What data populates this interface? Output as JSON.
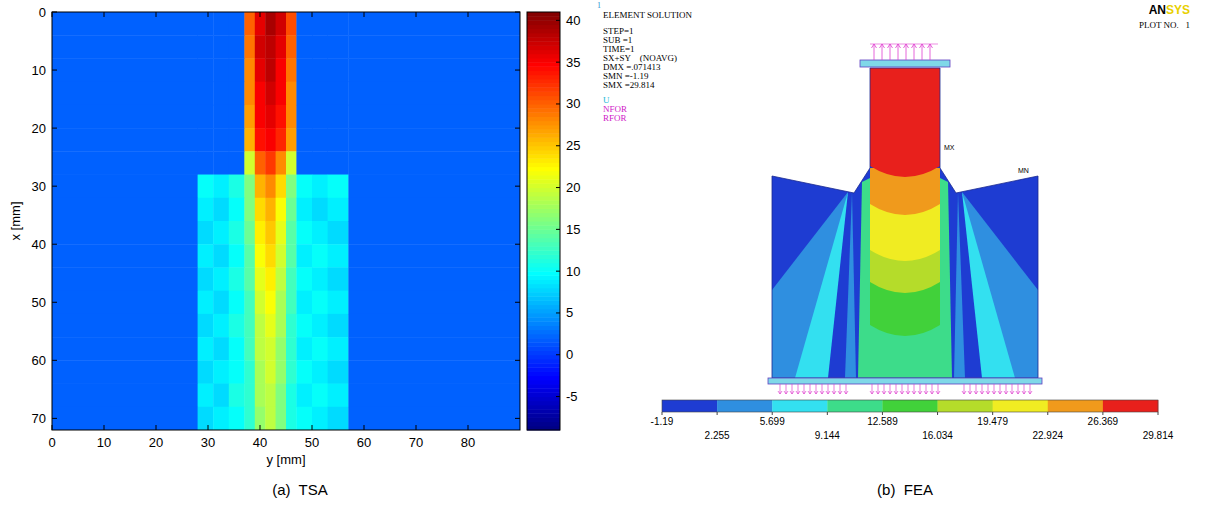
{
  "chart_data": [
    {
      "type": "heatmap",
      "caption": "(a)  TSA",
      "xlabel": "y [mm]",
      "ylabel": "x [mm]",
      "xlim": [
        0,
        90
      ],
      "ylim": [
        72,
        0
      ],
      "xticks": [
        0,
        10,
        20,
        30,
        40,
        50,
        60,
        70,
        80
      ],
      "yticks": [
        0,
        10,
        20,
        30,
        40,
        50,
        60,
        70
      ],
      "x_edges": [
        0,
        28,
        31,
        34,
        37,
        39,
        41,
        43,
        45,
        47,
        50,
        53,
        57,
        90
      ],
      "y_edges": [
        0,
        4,
        8,
        12,
        16,
        20,
        24,
        28,
        32,
        36,
        40,
        44,
        48,
        52,
        56,
        60,
        64,
        68,
        72
      ],
      "cells": [
        [
          2,
          2,
          2,
          2,
          30,
          36,
          39,
          37,
          31,
          2,
          2,
          2,
          2
        ],
        [
          2,
          2,
          2,
          2,
          29,
          37,
          38,
          36,
          30,
          2,
          2,
          2,
          2
        ],
        [
          2,
          2,
          2,
          2,
          28,
          36,
          38,
          35,
          29,
          2,
          2,
          2,
          2
        ],
        [
          2,
          2,
          2,
          2,
          28,
          35,
          37,
          35,
          28,
          2,
          2,
          2,
          2
        ],
        [
          2,
          2,
          2,
          2,
          27,
          35,
          36,
          34,
          28,
          2,
          2,
          2,
          2
        ],
        [
          2,
          2,
          2,
          2,
          26,
          34,
          35,
          33,
          27,
          2,
          2,
          2,
          2
        ],
        [
          2,
          2,
          2,
          2,
          20,
          30,
          32,
          28,
          20,
          2,
          2,
          2,
          2
        ],
        [
          2,
          10,
          9,
          11,
          16,
          26,
          28,
          24,
          16,
          10,
          9,
          10,
          2
        ],
        [
          2,
          9,
          8,
          10,
          16,
          24,
          26,
          22,
          15,
          9,
          8,
          9,
          2
        ],
        [
          2,
          8,
          9,
          11,
          15,
          23,
          25,
          21,
          14,
          10,
          9,
          8,
          2
        ],
        [
          2,
          9,
          8,
          10,
          14,
          22,
          24,
          20,
          14,
          9,
          10,
          9,
          2
        ],
        [
          2,
          8,
          9,
          11,
          14,
          21,
          23,
          19,
          13,
          10,
          9,
          8,
          2
        ],
        [
          2,
          9,
          8,
          10,
          13,
          20,
          22,
          18,
          13,
          9,
          10,
          9,
          2
        ],
        [
          2,
          8,
          9,
          11,
          13,
          19,
          21,
          18,
          12,
          10,
          9,
          8,
          2
        ],
        [
          2,
          9,
          8,
          10,
          13,
          19,
          20,
          17,
          12,
          9,
          10,
          9,
          2
        ],
        [
          2,
          8,
          9,
          10,
          12,
          18,
          20,
          17,
          12,
          10,
          9,
          8,
          2
        ],
        [
          2,
          9,
          8,
          11,
          12,
          18,
          19,
          16,
          11,
          9,
          10,
          9,
          2
        ],
        [
          2,
          8,
          9,
          10,
          12,
          17,
          19,
          16,
          11,
          10,
          9,
          8,
          2
        ]
      ],
      "colorbar": {
        "range": [
          -9,
          41
        ],
        "ticks": [
          -5,
          0,
          5,
          10,
          15,
          20,
          25,
          30,
          35,
          40
        ]
      }
    },
    {
      "type": "contour",
      "caption": "(b)  FEA",
      "window_number": "1",
      "logo": "ANSYS",
      "plot_label": "PLOT NO.   1",
      "header": [
        "ELEMENT SOLUTION",
        "STEP=1",
        "SUB =1",
        "TIME=1",
        "SX+SY    (NOAVG)",
        "DMX =.071413",
        "SMN =-1.19",
        "SMX =29.814"
      ],
      "symbols": [
        "U",
        "NFOR",
        "RFOR"
      ],
      "max_label": "MX",
      "min_label": "MN",
      "levels": [
        -1.19,
        2.255,
        5.699,
        9.144,
        12.589,
        16.034,
        19.479,
        22.924,
        26.369,
        29.814
      ],
      "colors": [
        "#1e3cd2",
        "#2f8fe0",
        "#33e0f0",
        "#3ddc8a",
        "#41d13a",
        "#b5dc2a",
        "#f0ec22",
        "#f09a1c",
        "#e8201c"
      ]
    }
  ]
}
